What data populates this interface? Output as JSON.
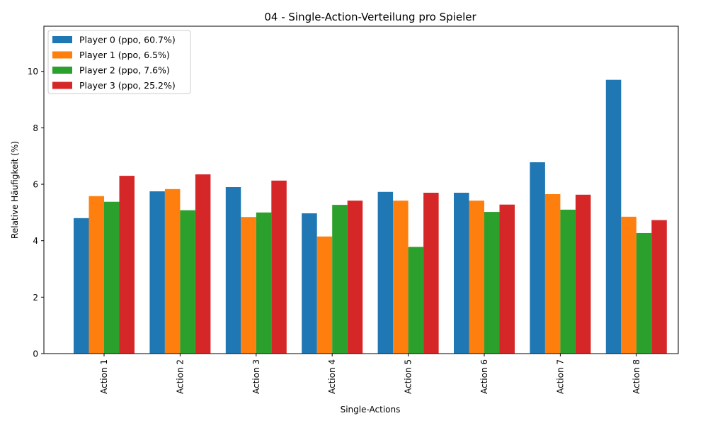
{
  "chart_data": {
    "type": "bar",
    "title": "04 - Single-Action-Verteilung pro Spieler",
    "xlabel": "Single-Actions",
    "ylabel": "Relative Häufigkeit (%)",
    "categories": [
      "Action 1",
      "Action 2",
      "Action 3",
      "Action 4",
      "Action 5",
      "Action 6",
      "Action 7",
      "Action 8"
    ],
    "ylim": [
      0,
      11.6
    ],
    "yticks": [
      0,
      2,
      4,
      6,
      8,
      10
    ],
    "grid": false,
    "legend_position": "top-left",
    "series": [
      {
        "name": "Player 0 (ppo, 60.7%)",
        "color": "#1f77b4",
        "values": [
          4.8,
          5.75,
          5.9,
          4.97,
          5.73,
          5.7,
          6.78,
          9.7
        ]
      },
      {
        "name": "Player 1 (ppo, 6.5%)",
        "color": "#ff7f0e",
        "values": [
          5.58,
          5.83,
          4.84,
          4.15,
          5.42,
          5.42,
          5.65,
          4.85
        ]
      },
      {
        "name": "Player 2 (ppo, 7.6%)",
        "color": "#2ca02c",
        "values": [
          5.38,
          5.08,
          5.0,
          5.27,
          3.78,
          5.02,
          5.1,
          4.27
        ]
      },
      {
        "name": "Player 3 (ppo, 25.2%)",
        "color": "#d62728",
        "values": [
          6.3,
          6.35,
          6.13,
          5.42,
          5.7,
          5.28,
          5.63,
          4.73
        ]
      }
    ]
  }
}
